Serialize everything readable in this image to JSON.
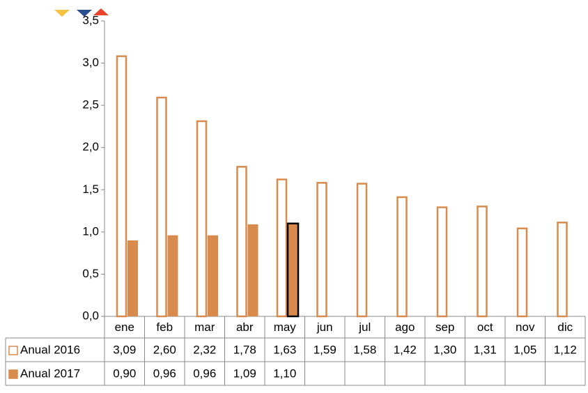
{
  "chart_data": {
    "type": "bar",
    "categories": [
      "ene",
      "feb",
      "mar",
      "abr",
      "may",
      "jun",
      "jul",
      "ago",
      "sep",
      "oct",
      "nov",
      "dic"
    ],
    "series": [
      {
        "name": "Anual 2016",
        "color": "#d98b4e",
        "fill": "none",
        "values": [
          3.09,
          2.6,
          2.32,
          1.78,
          1.63,
          1.59,
          1.58,
          1.42,
          1.3,
          1.31,
          1.05,
          1.12
        ],
        "value_labels": [
          "3,09",
          "2,60",
          "2,32",
          "1,78",
          "1,63",
          "1,59",
          "1,58",
          "1,42",
          "1,30",
          "1,31",
          "1,05",
          "1,12"
        ]
      },
      {
        "name": "Anual 2017",
        "color": "#d98b4e",
        "fill": "solid",
        "values": [
          0.9,
          0.96,
          0.96,
          1.09,
          1.1,
          null,
          null,
          null,
          null,
          null,
          null,
          null
        ],
        "value_labels": [
          "0,90",
          "0,96",
          "0,96",
          "1,09",
          "1,10",
          null,
          null,
          null,
          null,
          null,
          null,
          null
        ]
      }
    ],
    "ylim": [
      0,
      3.5
    ],
    "yticks": [
      {
        "value": 0,
        "label": "0,0"
      },
      {
        "value": 0.5,
        "label": "0,5"
      },
      {
        "value": 1,
        "label": "1,0"
      },
      {
        "value": 1.5,
        "label": "1,5"
      },
      {
        "value": 2,
        "label": "2,0"
      },
      {
        "value": 2.5,
        "label": "2,5"
      },
      {
        "value": 3,
        "label": "3,0"
      },
      {
        "value": 3.5,
        "label": "3,5"
      }
    ],
    "grid": false
  }
}
